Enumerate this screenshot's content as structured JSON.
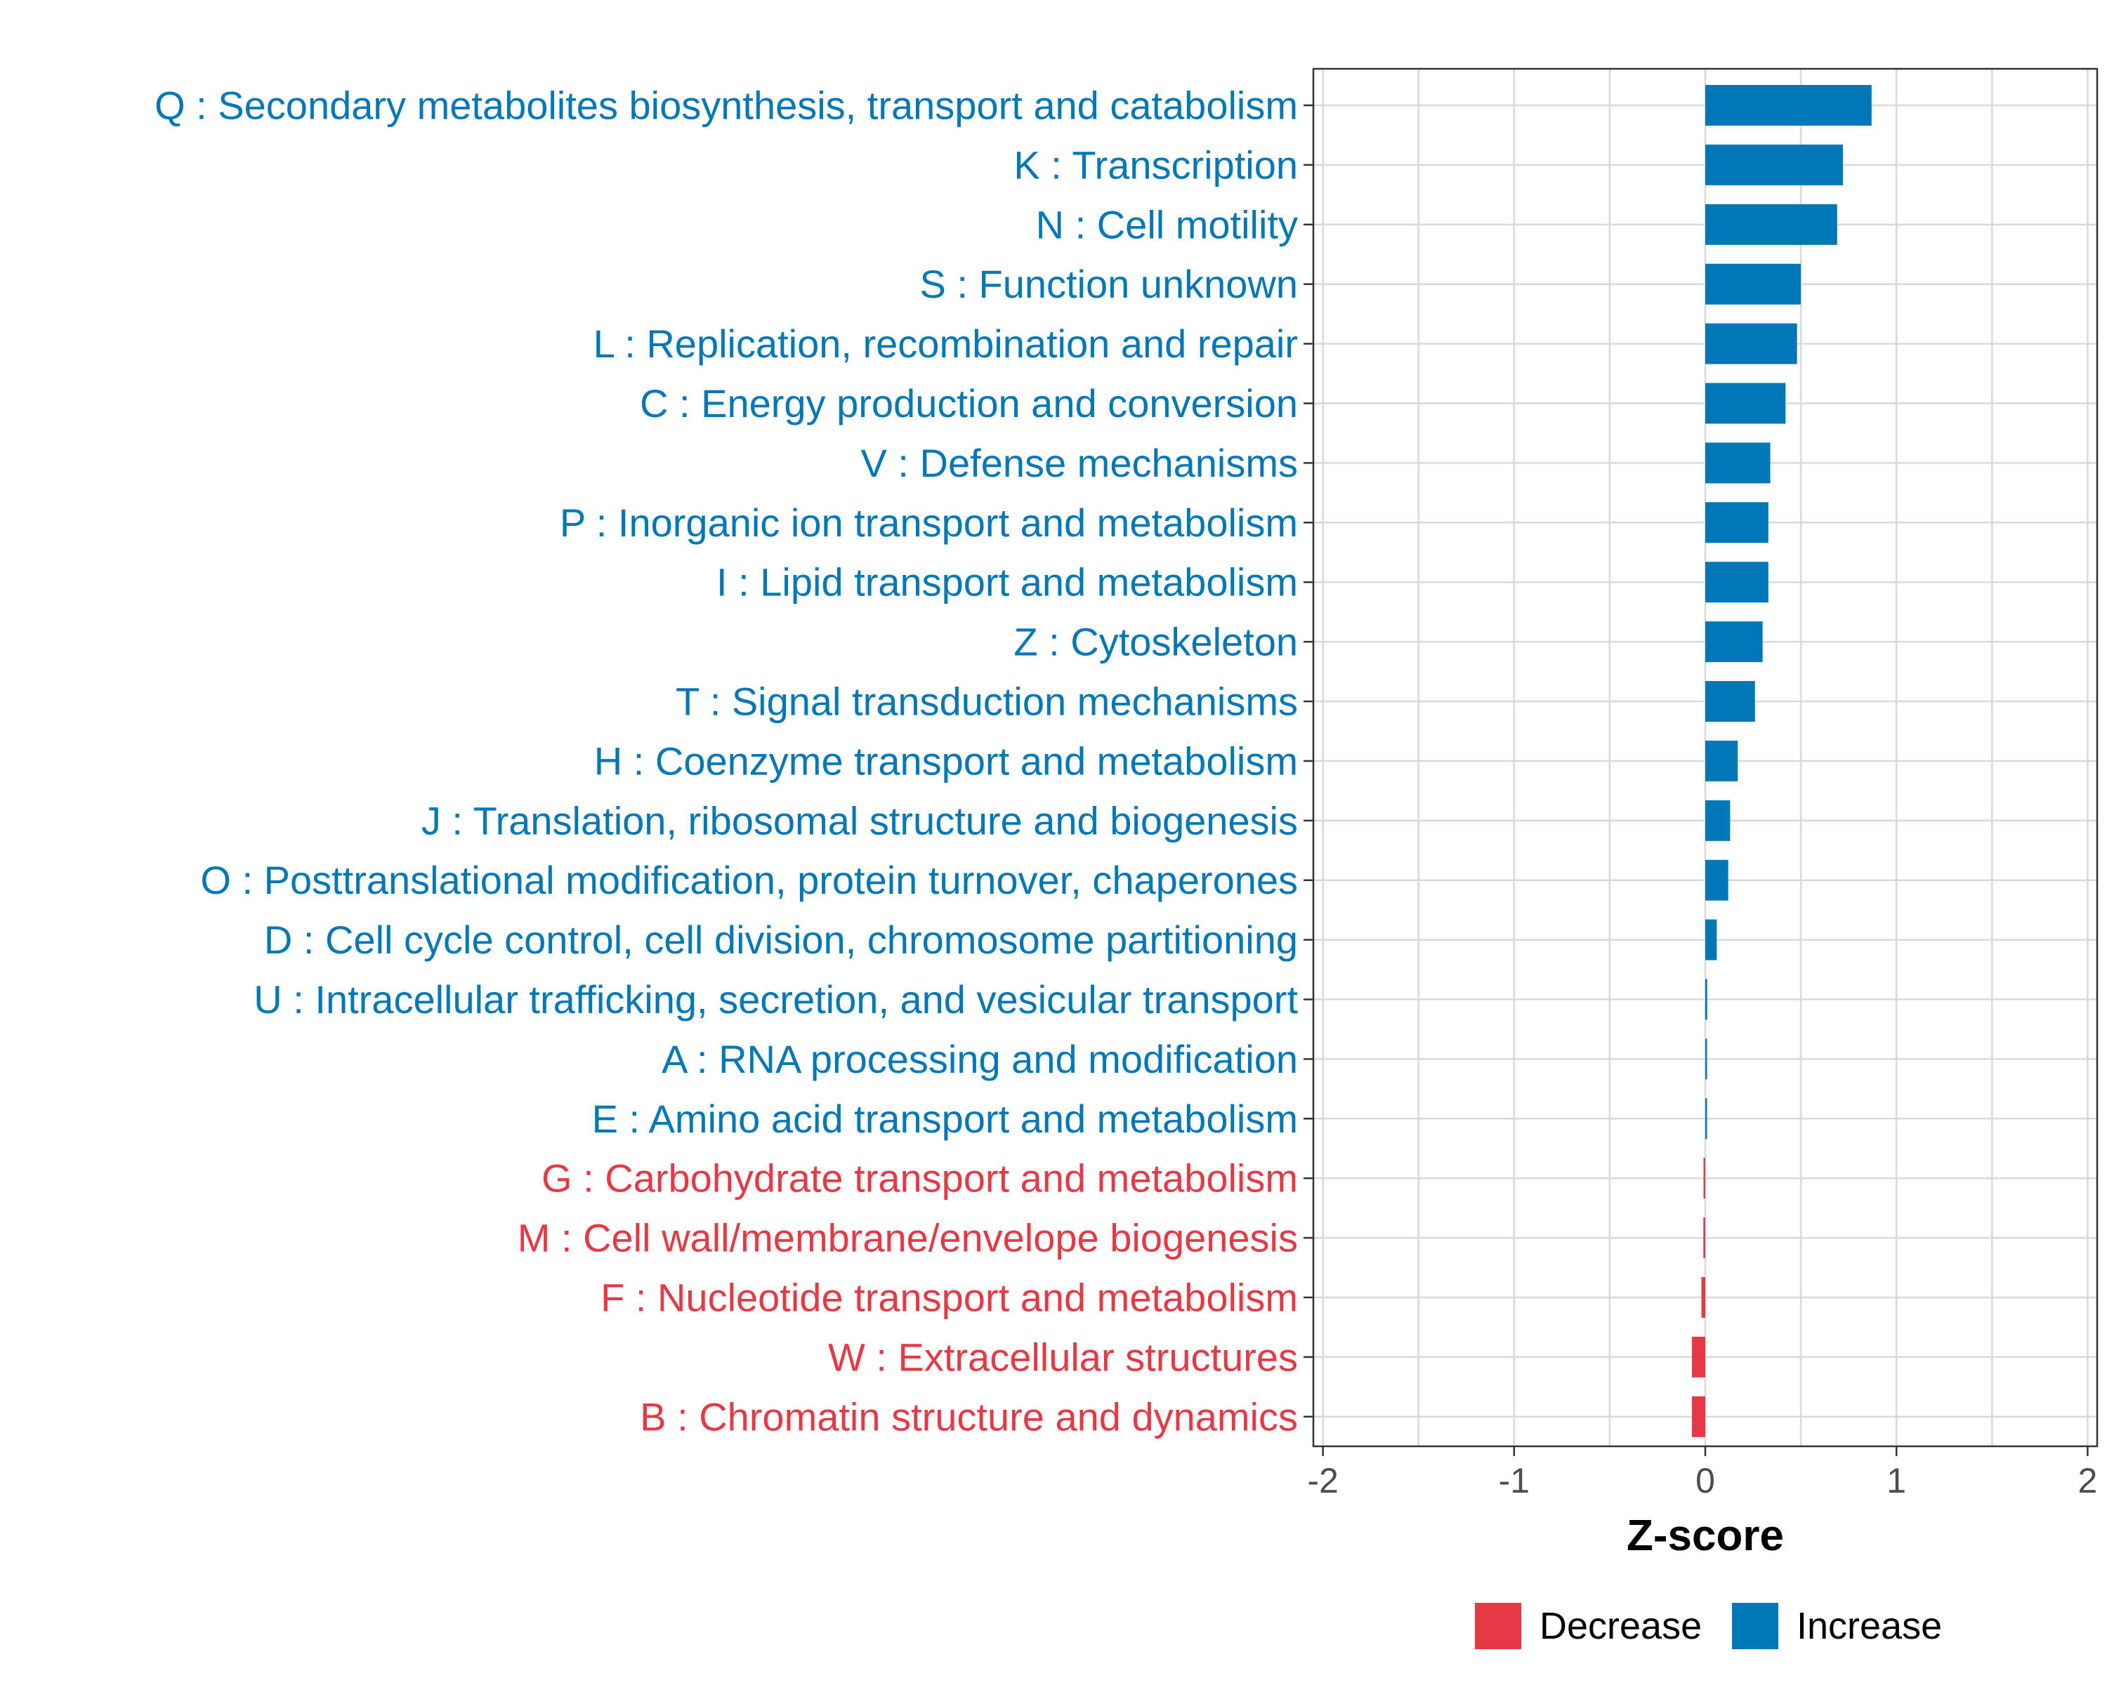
{
  "chart_data": {
    "type": "bar",
    "orientation": "horizontal",
    "title": "",
    "xlabel": "Z-score",
    "ylabel": "",
    "xlim": [
      -2.05,
      2.05
    ],
    "xticks": [
      -2,
      -1,
      0,
      1,
      2
    ],
    "xtick_labels": [
      "-2",
      "-1",
      "0",
      "1",
      "2"
    ],
    "grid": true,
    "legend_position": "bottom",
    "colors": {
      "Decrease": "#e63946",
      "Increase": "#0077b6"
    },
    "legend": [
      {
        "name": "Decrease"
      },
      {
        "name": "Increase"
      }
    ],
    "categories": [
      "Q : Secondary metabolites biosynthesis, transport and catabolism",
      "K : Transcription",
      "N : Cell motility",
      "S : Function unknown",
      "L : Replication, recombination and repair",
      "C : Energy production and conversion",
      "V : Defense mechanisms",
      "P : Inorganic ion transport and metabolism",
      "I : Lipid transport and metabolism",
      "Z : Cytoskeleton",
      "T : Signal transduction mechanisms",
      "H : Coenzyme transport and metabolism",
      "J : Translation, ribosomal structure and biogenesis",
      "O : Posttranslational modification, protein turnover, chaperones",
      "D : Cell cycle control, cell division, chromosome partitioning",
      "U : Intracellular trafficking, secretion, and vesicular transport",
      "A : RNA processing and modification",
      "E : Amino acid transport and metabolism",
      "G : Carbohydrate transport and metabolism",
      "M : Cell wall/membrane/envelope biogenesis",
      "F : Nucleotide transport and metabolism",
      "W : Extracellular structures",
      "B : Chromatin structure and dynamics"
    ],
    "values": [
      0.87,
      0.72,
      0.69,
      0.5,
      0.48,
      0.42,
      0.34,
      0.33,
      0.33,
      0.3,
      0.26,
      0.17,
      0.13,
      0.12,
      0.06,
      0.01,
      0.005,
      0.0,
      -0.005,
      -0.01,
      -0.02,
      -0.07,
      -0.07
    ],
    "groups": [
      "Increase",
      "Increase",
      "Increase",
      "Increase",
      "Increase",
      "Increase",
      "Increase",
      "Increase",
      "Increase",
      "Increase",
      "Increase",
      "Increase",
      "Increase",
      "Increase",
      "Increase",
      "Increase",
      "Increase",
      "Increase",
      "Decrease",
      "Decrease",
      "Decrease",
      "Decrease",
      "Decrease"
    ]
  }
}
